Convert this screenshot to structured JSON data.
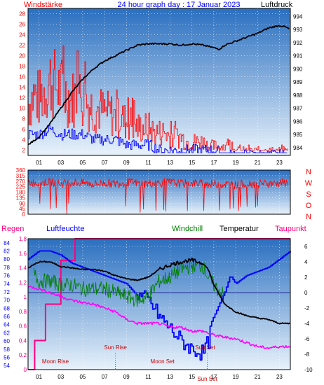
{
  "header": {
    "left": "Windstärke",
    "center": "24 hour graph day : 17 Januar 2023",
    "right": "Luftdruck"
  },
  "panel3_header": {
    "regen": "Regen",
    "luftfeuchte": "Luftfeuchte",
    "windchill": "Windchill",
    "temperatur": "Temperatur",
    "taupunkt": "Taupunkt"
  },
  "colors": {
    "bg_top": "#2a6fc0",
    "bg_bottom": "#e8f2fb",
    "wind_red": "#ff0000",
    "wind_blue": "#0000ff",
    "pressure": "#000000",
    "dir": "#ff0000",
    "rain": "#ff0080",
    "humidity": "#0000ff",
    "windchill": "#008000",
    "temperature": "#000000",
    "dewpoint": "#ff00ff",
    "left_axis_text": "#ff0000",
    "rain_axis_text": "#ff0080",
    "humidity_axis_text": "#0000ff",
    "temp_axis_text": "#000000"
  },
  "chart_data": [
    {
      "type": "line",
      "x_ticks": [
        "01",
        "03",
        "05",
        "07",
        "09",
        "11",
        "13",
        "15",
        "17",
        "19",
        "21",
        "23"
      ],
      "xlim": [
        0,
        24
      ],
      "left_axis": {
        "ticks": [
          2,
          4,
          6,
          8,
          10,
          12,
          14,
          16,
          18,
          20,
          22,
          24,
          26,
          28
        ],
        "ylim": [
          1,
          29
        ]
      },
      "right_axis": {
        "ticks": [
          984,
          985,
          986,
          987,
          988,
          989,
          990,
          991,
          992,
          993,
          994
        ],
        "ylim": [
          983.4,
          994.6
        ]
      },
      "series": [
        {
          "name": "Windstärke",
          "axis": "left",
          "role": "gust",
          "points": [
            [
              0.0,
              12
            ],
            [
              0.5,
              14
            ],
            [
              1.0,
              13
            ],
            [
              1.5,
              15
            ],
            [
              2.0,
              17
            ],
            [
              2.5,
              16
            ],
            [
              3.0,
              15
            ],
            [
              3.5,
              14
            ],
            [
              4.0,
              13
            ],
            [
              4.5,
              14
            ],
            [
              5.0,
              13
            ],
            [
              5.5,
              12
            ],
            [
              6.0,
              11
            ],
            [
              6.5,
              11
            ],
            [
              7.0,
              10
            ],
            [
              7.5,
              10
            ],
            [
              8.0,
              9
            ],
            [
              8.5,
              9
            ],
            [
              9.0,
              8
            ],
            [
              9.5,
              8
            ],
            [
              10.0,
              7
            ],
            [
              10.5,
              7
            ],
            [
              11.0,
              7
            ],
            [
              11.5,
              6
            ],
            [
              12.0,
              6
            ],
            [
              12.5,
              6
            ],
            [
              13.0,
              5
            ],
            [
              13.5,
              5
            ],
            [
              14.0,
              5
            ],
            [
              14.5,
              4
            ],
            [
              15.0,
              4
            ],
            [
              15.5,
              4
            ],
            [
              16.0,
              4
            ],
            [
              16.5,
              3
            ],
            [
              17.0,
              3
            ],
            [
              18.0,
              3
            ],
            [
              19.0,
              2
            ],
            [
              20.0,
              2
            ],
            [
              21.0,
              2
            ],
            [
              22.0,
              2
            ],
            [
              23.0,
              2
            ],
            [
              23.8,
              2
            ]
          ]
        },
        {
          "axis": "left",
          "role": "average",
          "points": [
            [
              0.0,
              5
            ],
            [
              1.0,
              5
            ],
            [
              2.0,
              6
            ],
            [
              3.0,
              5
            ],
            [
              4.0,
              5
            ],
            [
              5.0,
              5
            ],
            [
              6.0,
              4
            ],
            [
              7.0,
              4
            ],
            [
              8.0,
              4
            ],
            [
              9.0,
              3
            ],
            [
              10.0,
              3
            ],
            [
              11.0,
              3
            ],
            [
              12.0,
              2
            ],
            [
              13.0,
              2
            ],
            [
              14.0,
              2
            ],
            [
              15.0,
              2
            ],
            [
              16.0,
              2
            ],
            [
              17.0,
              2
            ],
            [
              18.0,
              1
            ],
            [
              20.0,
              1
            ],
            [
              22.0,
              1
            ],
            [
              23.8,
              1
            ]
          ]
        },
        {
          "name": "Luftdruck",
          "axis": "right",
          "points": [
            [
              0.0,
              984.2
            ],
            [
              1.0,
              984.8
            ],
            [
              2.0,
              985.8
            ],
            [
              3.0,
              987.0
            ],
            [
              4.0,
              988.2
            ],
            [
              5.0,
              989.2
            ],
            [
              6.0,
              990.0
            ],
            [
              7.0,
              990.6
            ],
            [
              8.0,
              991.0
            ],
            [
              9.0,
              991.4
            ],
            [
              10.0,
              991.8
            ],
            [
              11.0,
              991.9
            ],
            [
              12.0,
              991.9
            ],
            [
              13.0,
              991.9
            ],
            [
              14.0,
              991.8
            ],
            [
              15.0,
              991.9
            ],
            [
              16.0,
              991.8
            ],
            [
              17.0,
              991.6
            ],
            [
              17.5,
              991.5
            ],
            [
              18.0,
              991.8
            ],
            [
              19.0,
              992.1
            ],
            [
              20.0,
              992.4
            ],
            [
              21.0,
              992.7
            ],
            [
              22.0,
              993.1
            ],
            [
              23.0,
              993.3
            ],
            [
              23.5,
              993.2
            ],
            [
              24.0,
              993.0
            ]
          ]
        }
      ]
    },
    {
      "type": "line",
      "xlim": [
        0,
        24
      ],
      "left_axis": {
        "ticks": [
          0,
          45,
          90,
          135,
          180,
          225,
          270,
          315,
          360
        ],
        "ylim": [
          0,
          360
        ]
      },
      "right_labels": [
        "N",
        "W",
        "S",
        "O",
        "N"
      ],
      "series": [
        {
          "name": "Windrichtung",
          "points": [
            [
              0.0,
              260
            ],
            [
              1.0,
              255
            ],
            [
              2.0,
              265
            ],
            [
              3.0,
              250
            ],
            [
              4.0,
              260
            ],
            [
              5.0,
              255
            ],
            [
              6.0,
              245
            ],
            [
              7.0,
              255
            ],
            [
              8.0,
              250
            ],
            [
              9.0,
              260
            ],
            [
              10.0,
              255
            ],
            [
              11.0,
              250
            ],
            [
              12.0,
              255
            ],
            [
              13.0,
              260
            ],
            [
              14.0,
              250
            ],
            [
              15.0,
              255
            ],
            [
              16.0,
              250
            ],
            [
              17.0,
              245
            ],
            [
              18.0,
              245
            ],
            [
              19.0,
              240
            ],
            [
              20.0,
              250
            ],
            [
              21.0,
              250
            ],
            [
              22.0,
              250
            ],
            [
              23.0,
              255
            ],
            [
              23.8,
              260
            ]
          ]
        }
      ]
    },
    {
      "type": "line",
      "xlim": [
        0,
        24
      ],
      "x_ticks": [
        "01",
        "03",
        "05",
        "07",
        "09",
        "11",
        "13",
        "15",
        "17",
        "19",
        "21",
        "23"
      ],
      "rain_axis": {
        "ticks": [
          0,
          0.2,
          0.4,
          0.6,
          0.8,
          1,
          1.2,
          1.4,
          1.6,
          1.8
        ],
        "ylim": [
          0,
          1.8
        ]
      },
      "humidity_axis": {
        "ticks": [
          54,
          56,
          58,
          60,
          62,
          64,
          66,
          68,
          70,
          72,
          74,
          76,
          78,
          80,
          82,
          84
        ],
        "ylim": [
          53,
          85
        ]
      },
      "temp_axis": {
        "ticks": [
          -10,
          -8,
          -6,
          -4,
          -2,
          0,
          2,
          4,
          6
        ],
        "ylim": [
          -10,
          7
        ]
      },
      "annotations": [
        {
          "text": "Moon Rise",
          "x": 2.5
        },
        {
          "text": "Sun Rise",
          "x": 8.0
        },
        {
          "text": "Moon Set",
          "x": 12.3
        },
        {
          "text": "Sun Set",
          "x": 16.2
        },
        {
          "text": "Sun Set",
          "x": 16.4
        }
      ],
      "series": [
        {
          "name": "Regen",
          "axis": "rain",
          "points": [
            [
              0.0,
              0
            ],
            [
              0.5,
              0.0
            ],
            [
              0.6,
              0.4
            ],
            [
              1.5,
              0.4
            ],
            [
              1.6,
              0.9
            ],
            [
              2.9,
              0.9
            ],
            [
              3.0,
              1.5
            ],
            [
              4.2,
              1.5
            ],
            [
              4.3,
              1.8
            ],
            [
              24.0,
              1.8
            ]
          ]
        },
        {
          "name": "Luftfeuchte",
          "axis": "humidity",
          "points": [
            [
              0.0,
              80
            ],
            [
              1.0,
              82
            ],
            [
              2.0,
              82
            ],
            [
              3.0,
              81
            ],
            [
              4.0,
              79
            ],
            [
              5.0,
              78
            ],
            [
              6.0,
              77
            ],
            [
              7.0,
              76
            ],
            [
              8.0,
              75
            ],
            [
              9.0,
              74
            ],
            [
              10.0,
              71
            ],
            [
              11.0,
              70
            ],
            [
              12.0,
              66
            ],
            [
              13.0,
              63
            ],
            [
              14.0,
              60
            ],
            [
              15.0,
              58
            ],
            [
              16.0,
              57
            ],
            [
              16.5,
              60
            ],
            [
              17.0,
              66
            ],
            [
              18.0,
              72
            ],
            [
              18.5,
              76
            ],
            [
              19.0,
              74
            ],
            [
              20.0,
              76
            ],
            [
              21.0,
              77
            ],
            [
              22.0,
              78
            ],
            [
              23.0,
              80
            ],
            [
              24.0,
              82
            ]
          ]
        },
        {
          "name": "Windchill",
          "axis": "temp",
          "points": [
            [
              0.5,
              2.5
            ],
            [
              1.0,
              1.5
            ],
            [
              2.0,
              1.5
            ],
            [
              3.0,
              1.0
            ],
            [
              4.0,
              1.0
            ],
            [
              5.0,
              0.5
            ],
            [
              6.0,
              0.5
            ],
            [
              7.0,
              0.5
            ],
            [
              8.0,
              0.0
            ],
            [
              9.0,
              -0.5
            ],
            [
              10.0,
              -1.0
            ],
            [
              11.0,
              -0.5
            ],
            [
              12.0,
              1.5
            ],
            [
              13.0,
              2.0
            ],
            [
              14.0,
              3.0
            ],
            [
              15.0,
              3.5
            ],
            [
              16.0,
              3.5
            ],
            [
              16.5,
              2.0
            ],
            [
              17.0,
              1.0
            ],
            [
              18.0,
              -0.5
            ]
          ]
        },
        {
          "name": "Temperatur",
          "axis": "temp",
          "points": [
            [
              0.0,
              3.2
            ],
            [
              1.0,
              4.0
            ],
            [
              2.0,
              4.0
            ],
            [
              3.0,
              3.4
            ],
            [
              4.0,
              3.2
            ],
            [
              5.0,
              3.0
            ],
            [
              6.0,
              3.0
            ],
            [
              7.0,
              2.8
            ],
            [
              8.0,
              2.2
            ],
            [
              9.0,
              1.8
            ],
            [
              10.0,
              1.6
            ],
            [
              11.0,
              2.0
            ],
            [
              12.0,
              3.0
            ],
            [
              13.0,
              3.6
            ],
            [
              14.0,
              4.0
            ],
            [
              15.0,
              4.2
            ],
            [
              16.0,
              3.8
            ],
            [
              16.5,
              3.0
            ],
            [
              17.0,
              1.0
            ],
            [
              18.0,
              -1.5
            ],
            [
              19.0,
              -2.5
            ],
            [
              20.0,
              -3.0
            ],
            [
              21.0,
              -3.3
            ],
            [
              22.0,
              -3.5
            ],
            [
              23.0,
              -4.0
            ],
            [
              24.0,
              -4.0
            ]
          ]
        },
        {
          "name": "Taupunkt",
          "axis": "temp",
          "points": [
            [
              0.0,
              0.8
            ],
            [
              1.0,
              0.5
            ],
            [
              2.0,
              0.0
            ],
            [
              3.0,
              -0.5
            ],
            [
              4.0,
              -1.0
            ],
            [
              5.0,
              -1.3
            ],
            [
              6.0,
              -1.5
            ],
            [
              7.0,
              -2.0
            ],
            [
              8.0,
              -2.5
            ],
            [
              9.0,
              -3.5
            ],
            [
              10.0,
              -4.0
            ],
            [
              11.0,
              -4.0
            ],
            [
              12.0,
              -4.0
            ],
            [
              13.0,
              -4.5
            ],
            [
              14.0,
              -4.5
            ],
            [
              15.0,
              -5.0
            ],
            [
              16.0,
              -5.0
            ],
            [
              17.0,
              -5.5
            ],
            [
              18.0,
              -5.8
            ],
            [
              19.0,
              -6.0
            ],
            [
              20.0,
              -6.5
            ],
            [
              21.0,
              -7.0
            ],
            [
              22.0,
              -7.2
            ],
            [
              23.0,
              -7.0
            ],
            [
              24.0,
              -7.0
            ]
          ]
        }
      ]
    }
  ]
}
